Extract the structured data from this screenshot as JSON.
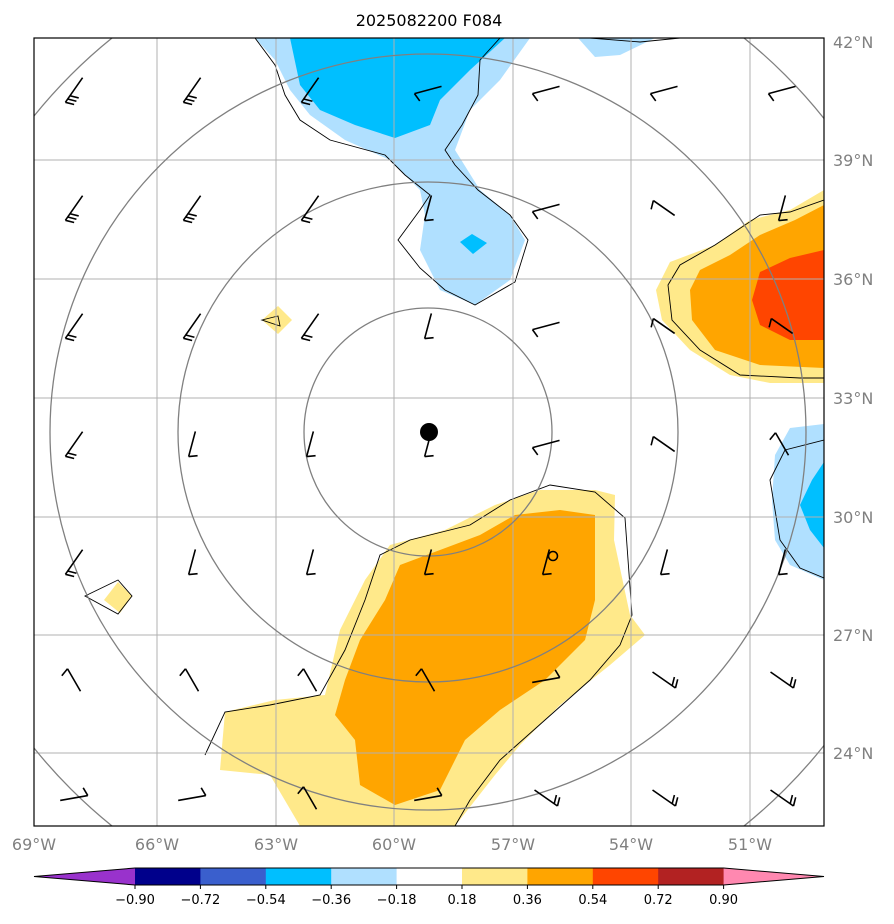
{
  "title": "2025082200 F084",
  "lon_labels": [
    "69°W",
    "66°W",
    "63°W",
    "60°W",
    "57°W",
    "54°W",
    "51°W"
  ],
  "lat_labels": [
    "42°N",
    "39°N",
    "36°N",
    "33°N",
    "30°N",
    "27°N",
    "24°N"
  ],
  "colorbar": {
    "ticks": [
      "−0.90",
      "−0.72",
      "−0.54",
      "−0.36",
      "−0.18",
      "0.18",
      "0.36",
      "0.54",
      "0.72",
      "0.90"
    ],
    "colors": [
      "#9932cc",
      "#00008b",
      "#3a5fcd",
      "#00bfff",
      "#b0e0ff",
      "#ffffff",
      "#ffe98a",
      "#ffa500",
      "#ff4500",
      "#b22222",
      "#ff88b0"
    ]
  },
  "colors": {
    "pos_light": "#ffe98a",
    "pos_mid": "#ffa500",
    "pos_strong": "#ff4500",
    "neg_light": "#b0e0ff",
    "neg_mid": "#00bfff",
    "grid": "#b0b0b0",
    "circle": "#808080"
  },
  "map": {
    "lon_range": [
      -69.0,
      -49.5
    ],
    "lat_range": [
      22.5,
      42.0
    ],
    "center": {
      "lon": -59.1,
      "lat": 32.1
    },
    "secondary_marker": {
      "lon": -56.0,
      "lat": 29.1
    },
    "range_ring_count": 4
  }
}
